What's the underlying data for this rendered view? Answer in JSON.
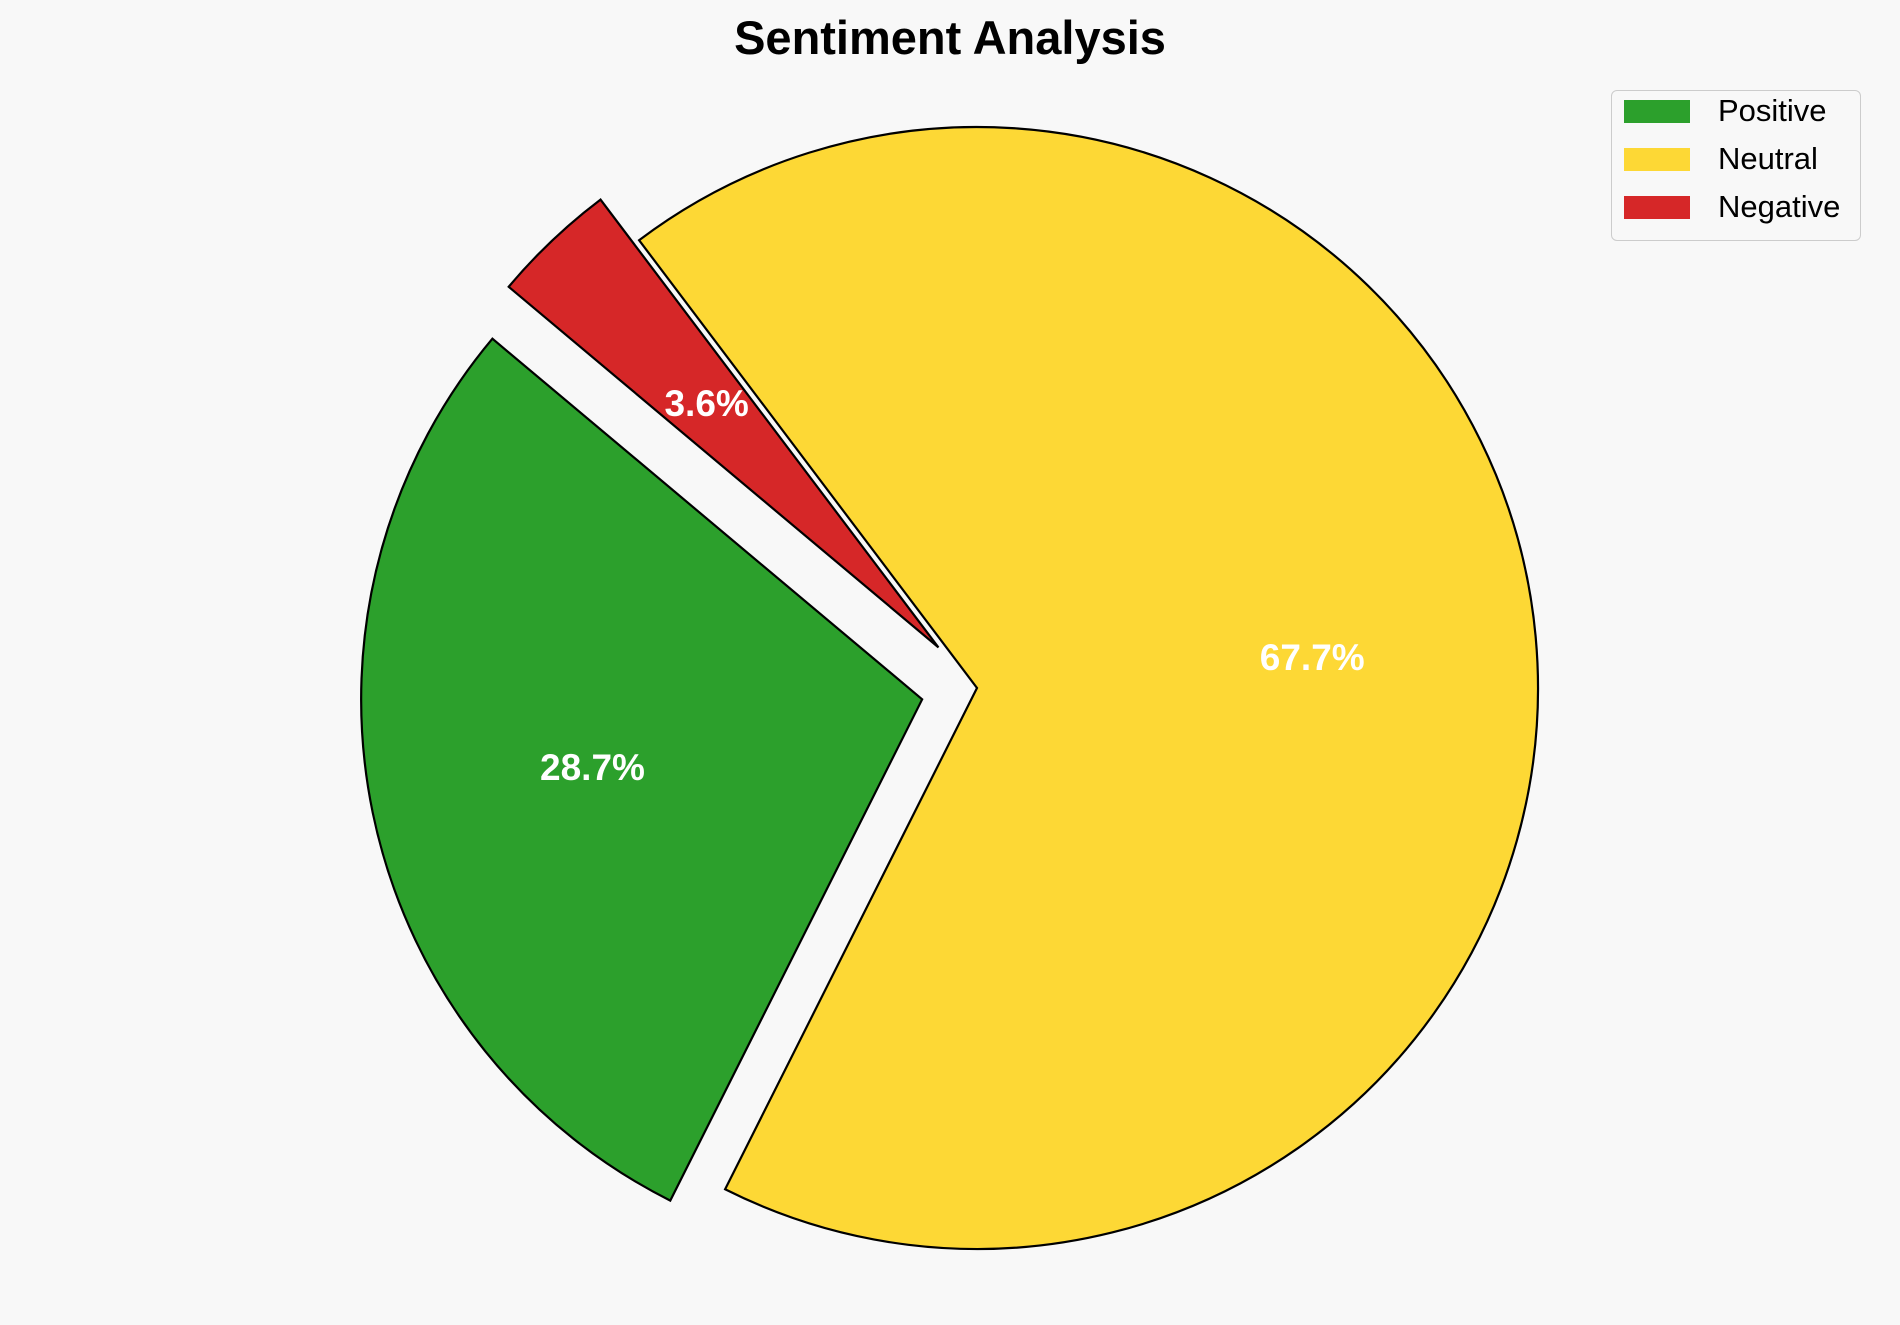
{
  "chart_data": {
    "type": "pie",
    "title": "Sentiment Analysis",
    "categories": [
      "Positive",
      "Neutral",
      "Negative"
    ],
    "values": [
      28.7,
      67.7,
      3.6
    ],
    "value_labels": [
      "28.7%",
      "67.7%",
      "3.6%"
    ],
    "colors": [
      "#2ca02c",
      "#fdd835",
      "#d62728"
    ],
    "exploded": [
      true,
      false,
      true
    ],
    "legend_position": "top-right"
  }
}
